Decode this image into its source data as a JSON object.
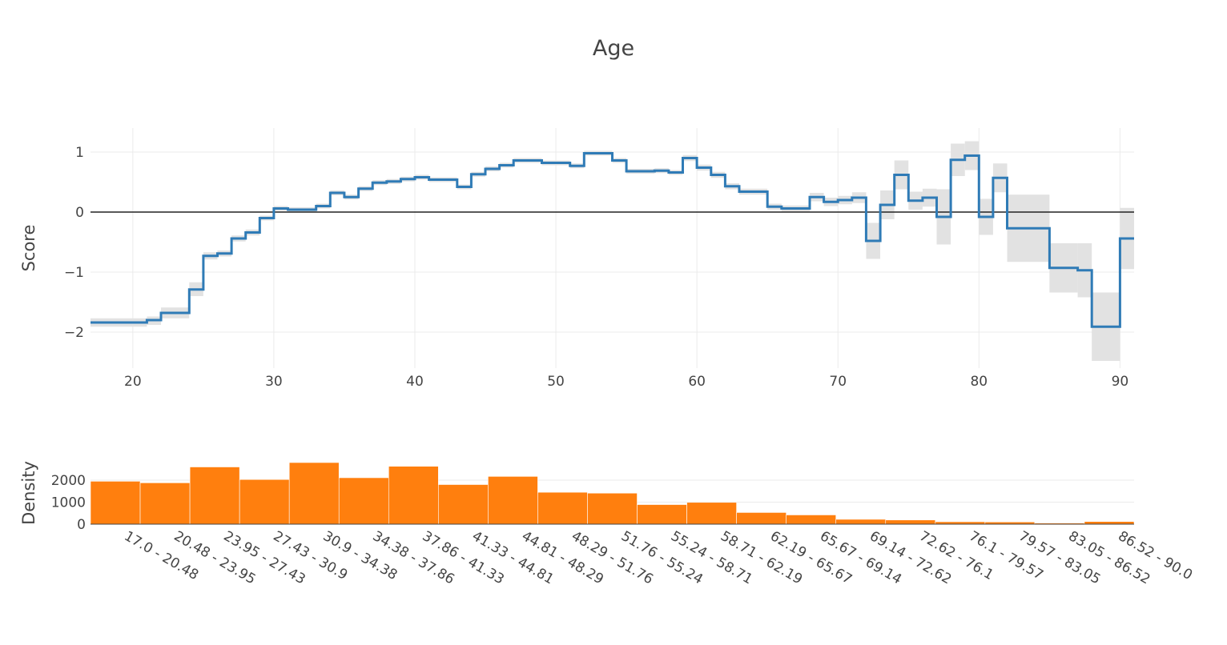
{
  "title": "Age",
  "chart_data": [
    {
      "type": "line",
      "shape": "step",
      "ylabel": "Score",
      "xlim": [
        17,
        91
      ],
      "ylim": [
        -2.6,
        1.4
      ],
      "xticks": [
        20,
        30,
        40,
        50,
        60,
        70,
        80,
        90
      ],
      "yticks": [
        -2,
        -1,
        0,
        1
      ],
      "ytick_labels": [
        "−2",
        "−1",
        "0",
        "1"
      ],
      "zero_line": true,
      "grid": true,
      "line_color": "#2f7bb6",
      "band_color": "#e2e2e2",
      "segments": [
        {
          "x0": 17,
          "x1": 21,
          "y": -1.84,
          "lo": -1.91,
          "hi": -1.77
        },
        {
          "x0": 21,
          "x1": 22,
          "y": -1.8,
          "lo": -1.88,
          "hi": -1.74
        },
        {
          "x0": 22,
          "x1": 24,
          "y": -1.68,
          "lo": -1.77,
          "hi": -1.59
        },
        {
          "x0": 24,
          "x1": 25,
          "y": -1.29,
          "lo": -1.4,
          "hi": -1.17
        },
        {
          "x0": 25,
          "x1": 26,
          "y": -0.73,
          "lo": -0.79,
          "hi": -0.67
        },
        {
          "x0": 26,
          "x1": 27,
          "y": -0.69,
          "lo": -0.74,
          "hi": -0.64
        },
        {
          "x0": 27,
          "x1": 28,
          "y": -0.44,
          "lo": -0.49,
          "hi": -0.39
        },
        {
          "x0": 28,
          "x1": 29,
          "y": -0.34,
          "lo": -0.39,
          "hi": -0.29
        },
        {
          "x0": 29,
          "x1": 30,
          "y": -0.1,
          "lo": -0.14,
          "hi": -0.06
        },
        {
          "x0": 30,
          "x1": 31,
          "y": 0.06,
          "lo": 0.02,
          "hi": 0.1
        },
        {
          "x0": 31,
          "x1": 33,
          "y": 0.04,
          "lo": 0.0,
          "hi": 0.08
        },
        {
          "x0": 33,
          "x1": 34,
          "y": 0.1,
          "lo": 0.06,
          "hi": 0.14
        },
        {
          "x0": 34,
          "x1": 35,
          "y": 0.32,
          "lo": 0.28,
          "hi": 0.36
        },
        {
          "x0": 35,
          "x1": 36,
          "y": 0.25,
          "lo": 0.21,
          "hi": 0.29
        },
        {
          "x0": 36,
          "x1": 37,
          "y": 0.39,
          "lo": 0.35,
          "hi": 0.43
        },
        {
          "x0": 37,
          "x1": 38,
          "y": 0.49,
          "lo": 0.45,
          "hi": 0.53
        },
        {
          "x0": 38,
          "x1": 39,
          "y": 0.51,
          "lo": 0.47,
          "hi": 0.55
        },
        {
          "x0": 39,
          "x1": 40,
          "y": 0.55,
          "lo": 0.51,
          "hi": 0.59
        },
        {
          "x0": 40,
          "x1": 41,
          "y": 0.58,
          "lo": 0.54,
          "hi": 0.62
        },
        {
          "x0": 41,
          "x1": 43,
          "y": 0.54,
          "lo": 0.5,
          "hi": 0.58
        },
        {
          "x0": 43,
          "x1": 44,
          "y": 0.42,
          "lo": 0.38,
          "hi": 0.46
        },
        {
          "x0": 44,
          "x1": 45,
          "y": 0.63,
          "lo": 0.59,
          "hi": 0.67
        },
        {
          "x0": 45,
          "x1": 46,
          "y": 0.72,
          "lo": 0.68,
          "hi": 0.76
        },
        {
          "x0": 46,
          "x1": 47,
          "y": 0.78,
          "lo": 0.74,
          "hi": 0.82
        },
        {
          "x0": 47,
          "x1": 49,
          "y": 0.86,
          "lo": 0.82,
          "hi": 0.9
        },
        {
          "x0": 49,
          "x1": 51,
          "y": 0.82,
          "lo": 0.78,
          "hi": 0.86
        },
        {
          "x0": 51,
          "x1": 52,
          "y": 0.77,
          "lo": 0.73,
          "hi": 0.81
        },
        {
          "x0": 52,
          "x1": 54,
          "y": 0.98,
          "lo": 0.94,
          "hi": 1.02
        },
        {
          "x0": 54,
          "x1": 55,
          "y": 0.86,
          "lo": 0.82,
          "hi": 0.9
        },
        {
          "x0": 55,
          "x1": 57,
          "y": 0.68,
          "lo": 0.64,
          "hi": 0.72
        },
        {
          "x0": 57,
          "x1": 58,
          "y": 0.69,
          "lo": 0.65,
          "hi": 0.73
        },
        {
          "x0": 58,
          "x1": 59,
          "y": 0.66,
          "lo": 0.62,
          "hi": 0.7
        },
        {
          "x0": 59,
          "x1": 60,
          "y": 0.9,
          "lo": 0.85,
          "hi": 0.95
        },
        {
          "x0": 60,
          "x1": 61,
          "y": 0.74,
          "lo": 0.69,
          "hi": 0.79
        },
        {
          "x0": 61,
          "x1": 62,
          "y": 0.62,
          "lo": 0.57,
          "hi": 0.67
        },
        {
          "x0": 62,
          "x1": 63,
          "y": 0.43,
          "lo": 0.38,
          "hi": 0.48
        },
        {
          "x0": 63,
          "x1": 65,
          "y": 0.34,
          "lo": 0.29,
          "hi": 0.39
        },
        {
          "x0": 65,
          "x1": 66,
          "y": 0.09,
          "lo": 0.04,
          "hi": 0.14
        },
        {
          "x0": 66,
          "x1": 68,
          "y": 0.06,
          "lo": 0.01,
          "hi": 0.11
        },
        {
          "x0": 68,
          "x1": 69,
          "y": 0.25,
          "lo": 0.18,
          "hi": 0.32
        },
        {
          "x0": 69,
          "x1": 70,
          "y": 0.17,
          "lo": 0.1,
          "hi": 0.24
        },
        {
          "x0": 70,
          "x1": 71,
          "y": 0.2,
          "lo": 0.13,
          "hi": 0.27
        },
        {
          "x0": 71,
          "x1": 72,
          "y": 0.24,
          "lo": 0.15,
          "hi": 0.33
        },
        {
          "x0": 72,
          "x1": 73,
          "y": -0.48,
          "lo": -0.78,
          "hi": -0.18
        },
        {
          "x0": 73,
          "x1": 74,
          "y": 0.12,
          "lo": -0.12,
          "hi": 0.36
        },
        {
          "x0": 74,
          "x1": 75,
          "y": 0.62,
          "lo": 0.38,
          "hi": 0.86
        },
        {
          "x0": 75,
          "x1": 76,
          "y": 0.19,
          "lo": 0.04,
          "hi": 0.34
        },
        {
          "x0": 76,
          "x1": 77,
          "y": 0.24,
          "lo": 0.09,
          "hi": 0.39
        },
        {
          "x0": 77,
          "x1": 78,
          "y": -0.08,
          "lo": -0.54,
          "hi": 0.38
        },
        {
          "x0": 78,
          "x1": 79,
          "y": 0.87,
          "lo": 0.6,
          "hi": 1.14
        },
        {
          "x0": 79,
          "x1": 80,
          "y": 0.94,
          "lo": 0.7,
          "hi": 1.18
        },
        {
          "x0": 80,
          "x1": 81,
          "y": -0.08,
          "lo": -0.38,
          "hi": 0.22
        },
        {
          "x0": 81,
          "x1": 82,
          "y": 0.57,
          "lo": 0.33,
          "hi": 0.81
        },
        {
          "x0": 82,
          "x1": 85,
          "y": -0.27,
          "lo": -0.83,
          "hi": 0.29
        },
        {
          "x0": 85,
          "x1": 87,
          "y": -0.93,
          "lo": -1.34,
          "hi": -0.52
        },
        {
          "x0": 87,
          "x1": 88,
          "y": -0.97,
          "lo": -1.42,
          "hi": -0.52
        },
        {
          "x0": 88,
          "x1": 90,
          "y": -1.91,
          "lo": -2.48,
          "hi": -1.34
        },
        {
          "x0": 90,
          "x1": 91,
          "y": -0.44,
          "lo": -0.95,
          "hi": 0.07
        }
      ]
    },
    {
      "type": "bar",
      "ylabel": "Density",
      "ylim": [
        0,
        2800
      ],
      "yticks": [
        0,
        1000,
        2000
      ],
      "grid": true,
      "bar_color": "#ff7f0e",
      "categories": [
        "17.0 - 20.48",
        "20.48 - 23.95",
        "23.95 - 27.43",
        "27.43 - 30.9",
        "30.9 - 34.38",
        "34.38 - 37.86",
        "37.86 - 41.33",
        "41.33 - 44.81",
        "44.81 - 48.29",
        "48.29 - 51.76",
        "51.76 - 55.24",
        "55.24 - 58.71",
        "58.71 - 62.19",
        "62.19 - 65.67",
        "65.67 - 69.14",
        "69.14 - 72.62",
        "72.62 - 76.1",
        "76.1 - 79.57",
        "79.57 - 83.05",
        "83.05 - 86.52",
        "86.52 - 90.0"
      ],
      "values": [
        1950,
        1880,
        2600,
        2030,
        2800,
        2110,
        2630,
        1800,
        2170,
        1450,
        1410,
        890,
        990,
        530,
        420,
        220,
        190,
        110,
        100,
        50,
        120
      ]
    }
  ]
}
